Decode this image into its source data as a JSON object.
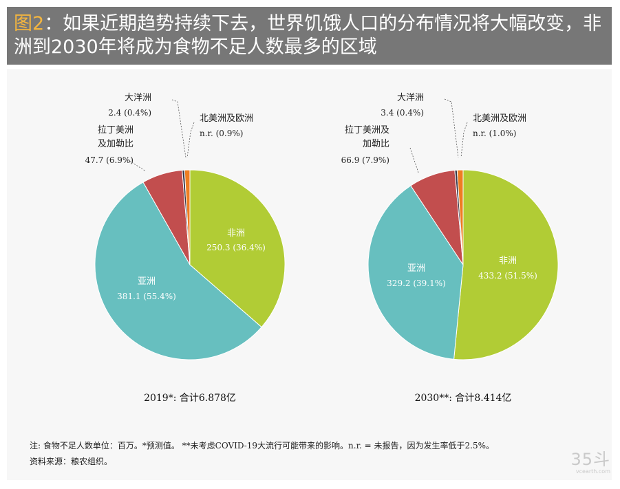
{
  "header": {
    "figure_label": "图2",
    "title_text": "：如果近期趋势持续下去，世界饥饿人口的分布情况将大幅改变，非洲到2030年将成为食物不足人数最多的区域"
  },
  "chart_data": [
    {
      "type": "pie",
      "caption": "2019*: 合计6.878亿",
      "slices": [
        {
          "name": "非洲",
          "value": 250.3,
          "pct": 36.4,
          "label": "250.3 (36.4%)",
          "color": "#b1cc35"
        },
        {
          "name": "亚洲",
          "value": 381.1,
          "pct": 55.4,
          "label": "381.1 (55.4%)",
          "color": "#67bfbf"
        },
        {
          "name": "拉丁美洲\n及加勒比",
          "value": 47.7,
          "pct": 6.9,
          "label": "47.7 (6.9%)",
          "color": "#c24e4e"
        },
        {
          "name": "大洋洲",
          "value": 2.4,
          "pct": 0.4,
          "label": "2.4 (0.4%)",
          "color": "#3a3a4a"
        },
        {
          "name": "北美洲及欧洲",
          "value": null,
          "pct": 0.9,
          "label": "n.r. (0.9%)",
          "color": "#ee7d22"
        }
      ]
    },
    {
      "type": "pie",
      "caption": "2030**: 合计8.414亿",
      "slices": [
        {
          "name": "非洲",
          "value": 433.2,
          "pct": 51.5,
          "label": "433.2 (51.5%)",
          "color": "#b1cc35"
        },
        {
          "name": "亚洲",
          "value": 329.2,
          "pct": 39.1,
          "label": "329.2 (39.1%)",
          "color": "#67bfbf"
        },
        {
          "name": "拉丁美洲及\n加勒比",
          "value": 66.9,
          "pct": 7.9,
          "label": "66.9 (7.9%)",
          "color": "#c24e4e"
        },
        {
          "name": "大洋洲",
          "value": 3.4,
          "pct": 0.4,
          "label": "3.4 (0.4%)",
          "color": "#3a3a4a"
        },
        {
          "name": "北美洲及欧洲",
          "value": null,
          "pct": 1.0,
          "label": "n.r. (1.0%)",
          "color": "#ee7d22"
        }
      ]
    }
  ],
  "footer": {
    "note": "注: 食物不足人数单位：百万。*预测值。 **未考虑COVID-19大流行可能带来的影响。n.r. = 未报告，因为发生率低于2.5%。",
    "source": "资料来源：粮农组织。"
  },
  "watermark": {
    "logo": "35斗",
    "site": "vcearth.com"
  }
}
